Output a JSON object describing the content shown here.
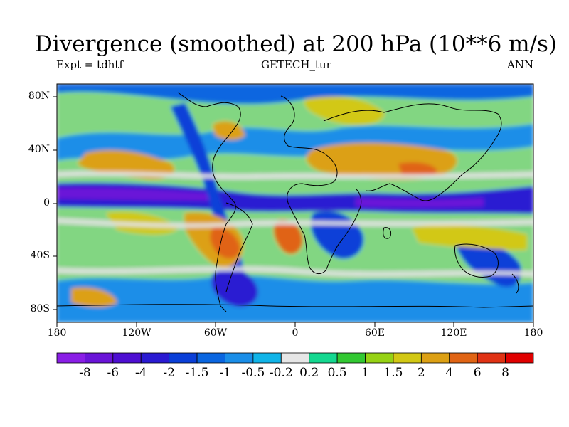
{
  "title": "Divergence (smoothed) at 200 hPa (10**6 m/s)",
  "subtitle_left": "Expt = tdhtf",
  "subtitle_center": "GETECH_tur",
  "subtitle_right": "ANN",
  "lat_ticks": [
    "80N",
    "40N",
    "0",
    "40S",
    "80S"
  ],
  "lon_ticks": [
    "180",
    "120W",
    "60W",
    "0",
    "60E",
    "120E",
    "180"
  ],
  "colorbar": {
    "labels": [
      "-8",
      "-6",
      "-4",
      "-2",
      "-1.5",
      "-1",
      "-0.5",
      "-0.2",
      "0.2",
      "0.5",
      "1",
      "1.5",
      "2",
      "4",
      "6",
      "8"
    ],
    "colors": [
      "#8a1ee6",
      "#6a14d8",
      "#4e0fd2",
      "#2a1ad2",
      "#0a3fd8",
      "#0a66e0",
      "#1a8ee8",
      "#10b4e8",
      "#e6e6e6",
      "#14d890",
      "#32c832",
      "#96d214",
      "#d2c814",
      "#dca014",
      "#e06414",
      "#e03214",
      "#e00000"
    ]
  }
}
